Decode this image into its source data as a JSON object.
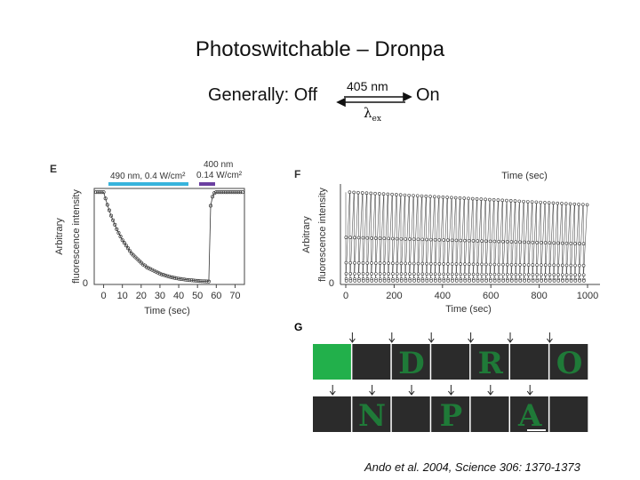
{
  "slide": {
    "title": "Photoswitchable – Dronpa",
    "generally_label": "Generally: Off",
    "on_label": "On",
    "arrow_top_label": "405 nm",
    "arrow_bottom_symbol": "λ",
    "arrow_bottom_sub": "ex",
    "citation": "Ando et al. 2004, Science 306: 1370-1373"
  },
  "panel_e": {
    "letter": "E",
    "beam1_label": "490 nm, 0.4 W/cm²",
    "beam2_label_a": "400 nm",
    "beam2_label_b": "0.14 W/cm²",
    "beam1_color": "#37b4dd",
    "beam2_color": "#6b3fa0"
  },
  "panel_f": {
    "letter": "F"
  },
  "panel_g": {
    "letter": "G",
    "row1": [
      "",
      "",
      "D",
      "",
      "R",
      "",
      "O"
    ],
    "row2": [
      "",
      "N",
      "",
      "P",
      "",
      "A",
      ""
    ],
    "active_color": "#22b04b",
    "tile_color": "#2b2b2b",
    "letter_color": "#1f7a38"
  },
  "chart_data": [
    {
      "type": "scatter",
      "title": "",
      "xlabel": "Time (sec)",
      "ylabel": "Arbitrary fluorescence intensity",
      "xlim": [
        -5,
        75
      ],
      "ylim": [
        0,
        1.1
      ],
      "xticks": [
        0,
        10,
        20,
        30,
        40,
        50,
        60,
        70
      ],
      "yticks": [
        0
      ],
      "annotations": [
        "490 nm, 0.4 W/cm²",
        "400 nm 0.14 W/cm²"
      ],
      "series": [
        {
          "x": [
            -4,
            -3,
            -2,
            -1,
            0,
            1,
            2,
            3,
            4,
            5,
            6,
            7,
            8,
            9,
            10,
            11,
            12,
            13,
            14,
            15,
            16,
            17,
            18,
            19,
            20,
            21,
            22,
            23,
            24,
            25,
            26,
            27,
            28,
            29,
            30,
            31,
            32,
            33,
            34,
            35,
            36,
            37,
            38,
            39,
            40,
            41,
            42,
            43,
            44,
            45,
            46,
            47,
            48,
            49,
            50,
            51,
            52,
            53,
            54,
            55,
            56,
            57,
            58,
            59,
            60,
            61,
            62,
            63,
            64,
            65,
            66,
            67,
            68,
            69,
            70,
            71,
            72,
            73,
            74
          ],
          "y": [
            1.0,
            1.0,
            1.0,
            1.0,
            1.0,
            0.93,
            0.86,
            0.8,
            0.74,
            0.69,
            0.64,
            0.59,
            0.55,
            0.51,
            0.47,
            0.44,
            0.41,
            0.38,
            0.35,
            0.32,
            0.3,
            0.28,
            0.26,
            0.24,
            0.22,
            0.2,
            0.19,
            0.17,
            0.16,
            0.15,
            0.14,
            0.13,
            0.12,
            0.11,
            0.1,
            0.09,
            0.085,
            0.078,
            0.072,
            0.066,
            0.061,
            0.056,
            0.052,
            0.048,
            0.044,
            0.041,
            0.038,
            0.035,
            0.032,
            0.03,
            0.028,
            0.026,
            0.024,
            0.022,
            0.02,
            0.018,
            0.017,
            0.016,
            0.015,
            0.014,
            0.013,
            0.85,
            0.95,
            0.99,
            1.0,
            1.0,
            1.0,
            1.0,
            1.0,
            1.0,
            1.0,
            1.0,
            1.0,
            1.0,
            1.0,
            1.0,
            1.0,
            1.0,
            1.0
          ]
        }
      ]
    },
    {
      "type": "line",
      "title": "",
      "xlabel": "Time (sec)",
      "ylabel": "Arbitrary fluorescence intensity",
      "xlim": [
        0,
        1000
      ],
      "ylim": [
        0,
        1.1
      ],
      "xticks": [
        0,
        200,
        400,
        600,
        800,
        1000
      ],
      "yticks": [
        0
      ],
      "cycles": 57,
      "peak_start": 1.0,
      "peak_end": 0.86,
      "trough": 0.02
    }
  ]
}
